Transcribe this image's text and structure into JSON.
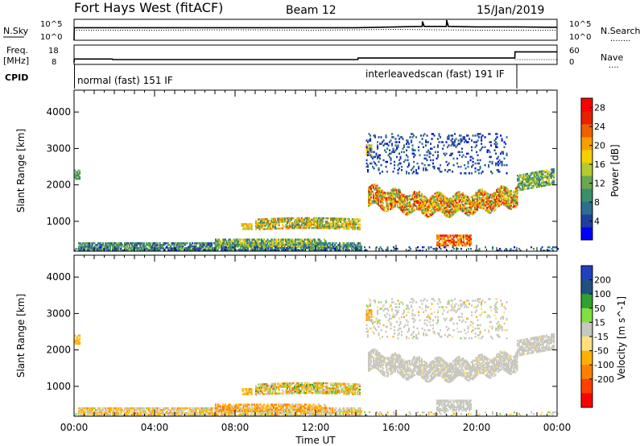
{
  "header": {
    "station": "Fort Hays West (fitACF)",
    "beam": "Beam 12",
    "date": "15/Jan/2019"
  },
  "colors": {
    "power_scale": [
      "#0000ff",
      "#2040a0",
      "#2e6e8e",
      "#3a8f6a",
      "#6aa84f",
      "#b5c930",
      "#f5d000",
      "#f5a000",
      "#f06000",
      "#e82000",
      "#ff0000"
    ],
    "velocity_scale": [
      "#ff0000",
      "#ff4000",
      "#ff8000",
      "#ffb000",
      "#ffe080",
      "#c8c8c0",
      "#80e040",
      "#30a030",
      "#205080",
      "#2040c0"
    ],
    "ground_scatter": "#c8c8c0"
  },
  "chart_data": [
    {
      "type": "line",
      "name": "sky-noise-panel",
      "left_label": "N.Sky",
      "right_label": "N.Search",
      "left_ticks": [
        "10^5",
        "10^0"
      ],
      "right_ticks": [
        "10^5",
        "10^0"
      ],
      "legend_dots": "........",
      "xlim_hours": [
        0,
        24
      ],
      "series": [
        {
          "x": [
            0,
            0.01,
            1,
            4,
            8,
            12,
            14,
            16,
            17.3,
            17.31,
            17.4,
            18.5,
            18.51,
            18.6,
            20,
            22,
            24
          ],
          "y": [
            0,
            3,
            3,
            3,
            3,
            3,
            3,
            3.2,
            3.3,
            4.5,
            3.3,
            3.3,
            4.8,
            3.3,
            3.2,
            3.2,
            3.1
          ]
        },
        {
          "x": [
            0,
            4,
            8,
            12,
            16,
            20,
            24
          ],
          "y": [
            2.4,
            2.4,
            2.5,
            2.4,
            2.6,
            2.4,
            2.4
          ],
          "dotted": true
        }
      ]
    },
    {
      "type": "line",
      "name": "frequency-panel",
      "left_label": "Freq.",
      "left_unit": "[MHz]",
      "right_label": "Nave",
      "left_ticks": [
        "18",
        "8"
      ],
      "right_ticks": [
        "60",
        "0"
      ],
      "legend_dots": "....",
      "cpid_label": "CPID",
      "modes": [
        {
          "label": "normal (fast) 151 IF",
          "start_hour": 0
        },
        {
          "label": "interleavedscan (fast) 191 IF",
          "start_hour": 14.2
        }
      ],
      "xlim_hours": [
        0,
        24
      ],
      "series": [
        {
          "x": [
            0,
            0.01,
            1.9,
            1.91,
            14.1,
            14.11,
            21.9,
            21.91,
            24
          ],
          "y": [
            9,
            10.8,
            10.8,
            10.5,
            10.5,
            11.3,
            11.3,
            14.5,
            14.5
          ]
        }
      ]
    },
    {
      "type": "heatmap",
      "name": "power-panel",
      "ylabel": "Slant Range [km]",
      "yticks": [
        "4000",
        "3000",
        "2000",
        "1000"
      ],
      "ytick_values": [
        4000,
        3000,
        2000,
        1000
      ],
      "ylim": [
        180,
        4600
      ],
      "xlim_hours": [
        0,
        24
      ],
      "colorbar_label": "Power [dB]",
      "colorbar_ticks": [
        "28",
        "24",
        "20",
        "16",
        "12",
        "8",
        "4"
      ],
      "colorbar_values": [
        28,
        24,
        20,
        16,
        12,
        8,
        4
      ],
      "colorbar_range": [
        0,
        30
      ]
    },
    {
      "type": "heatmap",
      "name": "velocity-panel",
      "ylabel": "Slant Range [km]",
      "yticks": [
        "4000",
        "3000",
        "2000",
        "1000"
      ],
      "ytick_values": [
        4000,
        3000,
        2000,
        1000
      ],
      "ylim": [
        180,
        4600
      ],
      "xlim_hours": [
        0,
        24
      ],
      "xlabel": "Time UT",
      "xticks": [
        "00:00",
        "04:00",
        "08:00",
        "12:00",
        "16:00",
        "20:00",
        "00:00"
      ],
      "xtick_hours": [
        0,
        4,
        8,
        12,
        16,
        20,
        24
      ],
      "colorbar_label": "Velocity [m s^-1]",
      "colorbar_ticks": [
        "200",
        "100",
        "50",
        "15",
        "-15",
        "-50",
        "-100",
        "-200"
      ],
      "colorbar_range": [
        -250,
        250
      ]
    }
  ],
  "scatter_regions": [
    {
      "id": "early-near",
      "t0": 0.2,
      "t1": 14.3,
      "r0": 200,
      "r1": 420,
      "pow": [
        4,
        14
      ],
      "vel": [
        -60,
        20
      ],
      "gs": 0.2
    },
    {
      "id": "early-spot",
      "t0": 0.0,
      "t1": 0.25,
      "r0": 2150,
      "r1": 2400,
      "pow": [
        8,
        16
      ],
      "vel": [
        -40,
        0
      ],
      "gs": 0.0
    },
    {
      "id": "morning-patch",
      "t0": 7.0,
      "t1": 12.5,
      "r0": 300,
      "r1": 520,
      "pow": [
        6,
        20
      ],
      "vel": [
        -80,
        10
      ],
      "gs": 0.1
    },
    {
      "id": "mid-band",
      "t0": 9.0,
      "t1": 14.2,
      "r0": 700,
      "r1": 1100,
      "pow": [
        8,
        24
      ],
      "vel": [
        -80,
        60
      ],
      "gs": 0.1
    },
    {
      "id": "small-blob",
      "t0": 8.3,
      "t1": 8.8,
      "r0": 770,
      "r1": 920,
      "pow": [
        12,
        22
      ],
      "vel": [
        -60,
        0
      ],
      "gs": 0.0
    },
    {
      "id": "low-blob",
      "t0": 18.0,
      "t1": 19.7,
      "r0": 320,
      "r1": 620,
      "pow": [
        18,
        28
      ],
      "vel": [
        -15,
        15
      ],
      "gs": 1.0
    },
    {
      "id": "spot-3000",
      "t0": 14.5,
      "t1": 14.8,
      "r0": 2800,
      "r1": 3100,
      "pow": [
        12,
        20
      ],
      "vel": [
        -80,
        -20
      ],
      "gs": 0.0
    },
    {
      "id": "far-sparse",
      "t0": 14.5,
      "t1": 21.5,
      "r0": 2300,
      "r1": 3400,
      "pow": [
        2,
        8
      ],
      "vel": [
        -20,
        20
      ],
      "gs": 0.6
    },
    {
      "id": "main-arc",
      "t0": 14.6,
      "t1": 22.0,
      "r0": 1200,
      "r1": 2300,
      "pow": [
        10,
        28
      ],
      "vel": [
        -15,
        15
      ],
      "gs": 0.85
    },
    {
      "id": "late-arc",
      "t0": 22.0,
      "t1": 23.8,
      "r0": 1800,
      "r1": 2500,
      "pow": [
        6,
        18
      ],
      "vel": [
        -15,
        15
      ],
      "gs": 0.9
    },
    {
      "id": "bottom-noise",
      "t0": 0.0,
      "t1": 24.0,
      "r0": 180,
      "r1": 300,
      "pow": [
        2,
        10
      ],
      "vel": [
        -50,
        20
      ],
      "gs": 0.3
    }
  ]
}
